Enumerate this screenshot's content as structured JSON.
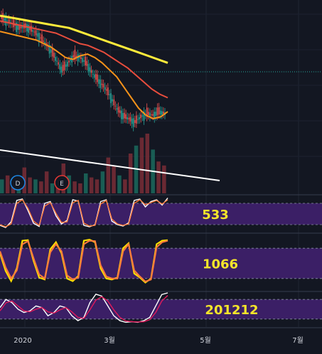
{
  "chart_data": {
    "type": "line",
    "title": "",
    "x_axis": {
      "ticks": [
        "2020",
        "3월",
        "5월",
        "7월"
      ]
    },
    "colors": {
      "background": "#131722",
      "candle_up": "#26a69a",
      "candle_down": "#ef5350",
      "ma_short": "#f7931a",
      "ma_mid": "#e84d3d",
      "ma_long": "#ffeb3b",
      "trendline": "#ffffff",
      "horizontal_level": "#26a69a",
      "osc_band": "#3b1f66",
      "osc_line_a": "#ffffff",
      "osc_line_b": "#ff7a3c",
      "osc_line_c": "#ffe000",
      "osc_line_d": "#e0195a"
    },
    "price_panel": {
      "moving_averages": [
        {
          "color": "#f7931a",
          "y": [
            92,
            91,
            90,
            89,
            88,
            87,
            85,
            83,
            80,
            77,
            76,
            78,
            79,
            77,
            74,
            70,
            66,
            60,
            54,
            48,
            44,
            42,
            43,
            46
          ]
        },
        {
          "color": "#e84d3d",
          "y": [
            98,
            97,
            96,
            95,
            94,
            93,
            92,
            91,
            89,
            87,
            85,
            84,
            82,
            80,
            77,
            74,
            71,
            67,
            63,
            59,
            56,
            54
          ]
        },
        {
          "color": "#ffeb3b",
          "y": [
            101,
            100,
            99,
            98,
            97,
            96,
            95,
            94,
            92,
            90,
            88,
            86,
            84,
            82,
            80,
            78,
            76,
            74
          ]
        }
      ],
      "close_path": [
        100,
        98,
        96,
        94,
        95,
        93,
        90,
        86,
        82,
        76,
        70,
        74,
        78,
        77,
        74,
        68,
        64,
        60,
        55,
        48,
        44,
        42,
        40,
        43,
        45,
        44,
        46,
        45
      ],
      "volume": [
        14,
        18,
        10,
        12,
        26,
        16,
        14,
        12,
        22,
        10,
        14,
        30,
        18,
        12,
        10,
        20,
        16,
        14,
        22,
        36,
        28,
        18,
        14,
        40,
        48,
        56,
        60,
        44,
        32,
        28
      ],
      "events": [
        {
          "label": "D",
          "color": "#1e88e5"
        },
        {
          "label": "E",
          "color": "#e53935"
        }
      ]
    },
    "oscillators": [
      {
        "label": "533",
        "range": [
          0,
          100
        ],
        "band": [
          20,
          80
        ],
        "series": [
          {
            "color": "#ffffff",
            "values": [
              18,
              12,
              28,
              88,
              92,
              60,
              24,
              15,
              80,
              85,
              45,
              22,
              32,
              90,
              86,
              18,
              14,
              20,
              85,
              90,
              30,
              20,
              16,
              25,
              88,
              92,
              70,
              85,
              90,
              75,
              95
            ]
          },
          {
            "color": "#ff7a3c",
            "values": [
              20,
              14,
              22,
              80,
              90,
              66,
              30,
              18,
              72,
              82,
              52,
              26,
              28,
              82,
              88,
              24,
              16,
              18,
              78,
              88,
              36,
              22,
              18,
              22,
              80,
              90,
              76,
              82,
              88,
              78,
              90
            ]
          }
        ]
      },
      {
        "label": "1066",
        "range": [
          0,
          100
        ],
        "band": [
          20,
          80
        ],
        "series": [
          {
            "color": "#ffe000",
            "values": [
              70,
              35,
              15,
              40,
              95,
              96,
              55,
              22,
              18,
              78,
              92,
              70,
              20,
              15,
              25,
              95,
              97,
              92,
              40,
              20,
              18,
              22,
              80,
              90,
              30,
              22,
              12,
              20,
              88,
              95,
              96
            ]
          },
          {
            "color": "#ff7a3c",
            "values": [
              74,
              42,
              20,
              36,
              88,
              94,
              60,
              28,
              20,
              72,
              88,
              74,
              26,
              18,
              22,
              88,
              95,
              94,
              46,
              24,
              20,
              20,
              74,
              88,
              36,
              24,
              14,
              18,
              82,
              92,
              95
            ]
          }
        ]
      },
      {
        "label": "201212",
        "range": [
          0,
          100
        ],
        "band": [
          20,
          80
        ],
        "series": [
          {
            "color": "#ffffff",
            "values": [
              55,
              80,
              70,
              50,
              40,
              45,
              60,
              55,
              30,
              40,
              60,
              55,
              30,
              15,
              25,
              70,
              96,
              90,
              60,
              30,
              15,
              10,
              12,
              10,
              15,
              25,
              60,
              95,
              100
            ]
          },
          {
            "color": "#e0195a",
            "values": [
              45,
              70,
              75,
              60,
              45,
              42,
              50,
              55,
              42,
              38,
              48,
              55,
              42,
              25,
              22,
              48,
              78,
              88,
              75,
              48,
              25,
              14,
              12,
              11,
              12,
              18,
              40,
              75,
              92
            ]
          }
        ]
      }
    ]
  }
}
